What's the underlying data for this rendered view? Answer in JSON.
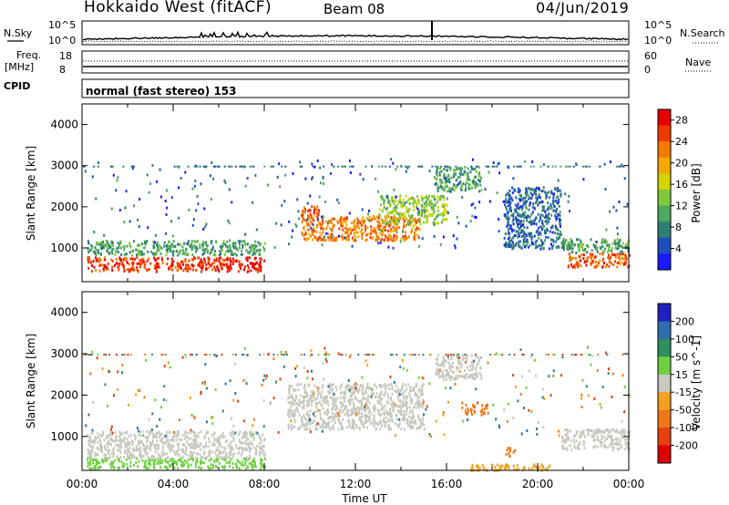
{
  "header": {
    "station": "Hokkaido West (fitACF)",
    "beam": "Beam 08",
    "date": "04/Jun/2019"
  },
  "noise_panel": {
    "left_label": "N.Sky",
    "right_label": "N.Search",
    "ticks": [
      "10^5",
      "10^0"
    ],
    "line_styles": {
      "N.Sky": "solid",
      "N.Search": "dotted"
    }
  },
  "freq_panel": {
    "left_label_1": "Freq.",
    "left_label_2": "[MHz]",
    "left_ticks": [
      "18",
      "8"
    ],
    "right_label": "Nave",
    "right_ticks": [
      "60",
      "0"
    ]
  },
  "cpid_panel": {
    "label": "CPID",
    "mode_text": "normal (fast stereo) 153"
  },
  "chart_data": [
    {
      "type": "heatmap",
      "title": "",
      "xlabel": "",
      "ylabel": "Slant Range [km]",
      "x_range_hours": [
        0,
        24
      ],
      "ylim": [
        180,
        4500
      ],
      "yticks": [
        1000,
        2000,
        3000,
        4000
      ],
      "colorbar": {
        "label": "Power [dB]",
        "ticks": [
          "4",
          "8",
          "12",
          "16",
          "20",
          "24",
          "28"
        ],
        "range": [
          0,
          30
        ],
        "colors": [
          "#1a1aff",
          "#1f4fbf",
          "#2d7f73",
          "#4da860",
          "#7ec93a",
          "#d4d400",
          "#f5a800",
          "#f57a00",
          "#f23a00",
          "#e60000"
        ]
      },
      "echo_regions": [
        {
          "t": [
            0.2,
            6.5
          ],
          "r": [
            450,
            800
          ],
          "value": 26
        },
        {
          "t": [
            0.2,
            8.0
          ],
          "r": [
            850,
            1200
          ],
          "value": 10
        },
        {
          "t": [
            6.3,
            8.0
          ],
          "r": [
            450,
            800
          ],
          "value": 28
        },
        {
          "t": [
            9.6,
            14.8
          ],
          "r": [
            1200,
            1800
          ],
          "value": 22
        },
        {
          "t": [
            9.6,
            10.4
          ],
          "r": [
            1700,
            2050
          ],
          "value": 24
        },
        {
          "t": [
            13.0,
            16.0
          ],
          "r": [
            1600,
            2300
          ],
          "value": 14
        },
        {
          "t": [
            15.5,
            17.5
          ],
          "r": [
            2400,
            3000
          ],
          "value": 10
        },
        {
          "t": [
            21.3,
            24.0
          ],
          "r": [
            550,
            900
          ],
          "value": 24
        },
        {
          "t": [
            21.0,
            24.0
          ],
          "r": [
            900,
            1250
          ],
          "value": 10
        },
        {
          "t": [
            18.5,
            21.0
          ],
          "r": [
            1000,
            2500
          ],
          "value": 6
        }
      ]
    },
    {
      "type": "heatmap",
      "title": "",
      "xlabel": "Time UT",
      "ylabel": "Slant Range [km]",
      "xticks": [
        "00:00",
        "04:00",
        "08:00",
        "12:00",
        "16:00",
        "20:00",
        "00:00"
      ],
      "x_range_hours": [
        0,
        24
      ],
      "ylim": [
        180,
        4500
      ],
      "yticks": [
        1000,
        2000,
        3000,
        4000
      ],
      "colorbar": {
        "label": "Velocity [m s^-1]",
        "ticks": [
          "200",
          "100",
          "50",
          "15",
          "-15",
          "-50",
          "-100",
          "-200"
        ],
        "colors": [
          "#2020c0",
          "#2f6fb0",
          "#2f8f5f",
          "#6fcf3f",
          "#c8c8c0",
          "#f2a020",
          "#f07818",
          "#e84010",
          "#e00000"
        ]
      },
      "echo_regions": [
        {
          "t": [
            0.2,
            8.0
          ],
          "r": [
            250,
            500
          ],
          "value": 40
        },
        {
          "t": [
            0.2,
            8.0
          ],
          "r": [
            500,
            1150
          ],
          "value": 0
        },
        {
          "t": [
            9.0,
            15.0
          ],
          "r": [
            1200,
            2300
          ],
          "value": 0
        },
        {
          "t": [
            16.8,
            17.8
          ],
          "r": [
            1550,
            1800
          ],
          "value": -60
        },
        {
          "t": [
            18.5,
            19.0
          ],
          "r": [
            550,
            750
          ],
          "value": -70
        },
        {
          "t": [
            17.0,
            20.5
          ],
          "r": [
            200,
            350
          ],
          "value": -40
        },
        {
          "t": [
            21.0,
            24.0
          ],
          "r": [
            700,
            1200
          ],
          "value": 0
        },
        {
          "t": [
            15.5,
            17.5
          ],
          "r": [
            2400,
            3000
          ],
          "value": 0
        }
      ]
    }
  ],
  "colors": {
    "axis": "#000000",
    "background": "#ffffff"
  }
}
